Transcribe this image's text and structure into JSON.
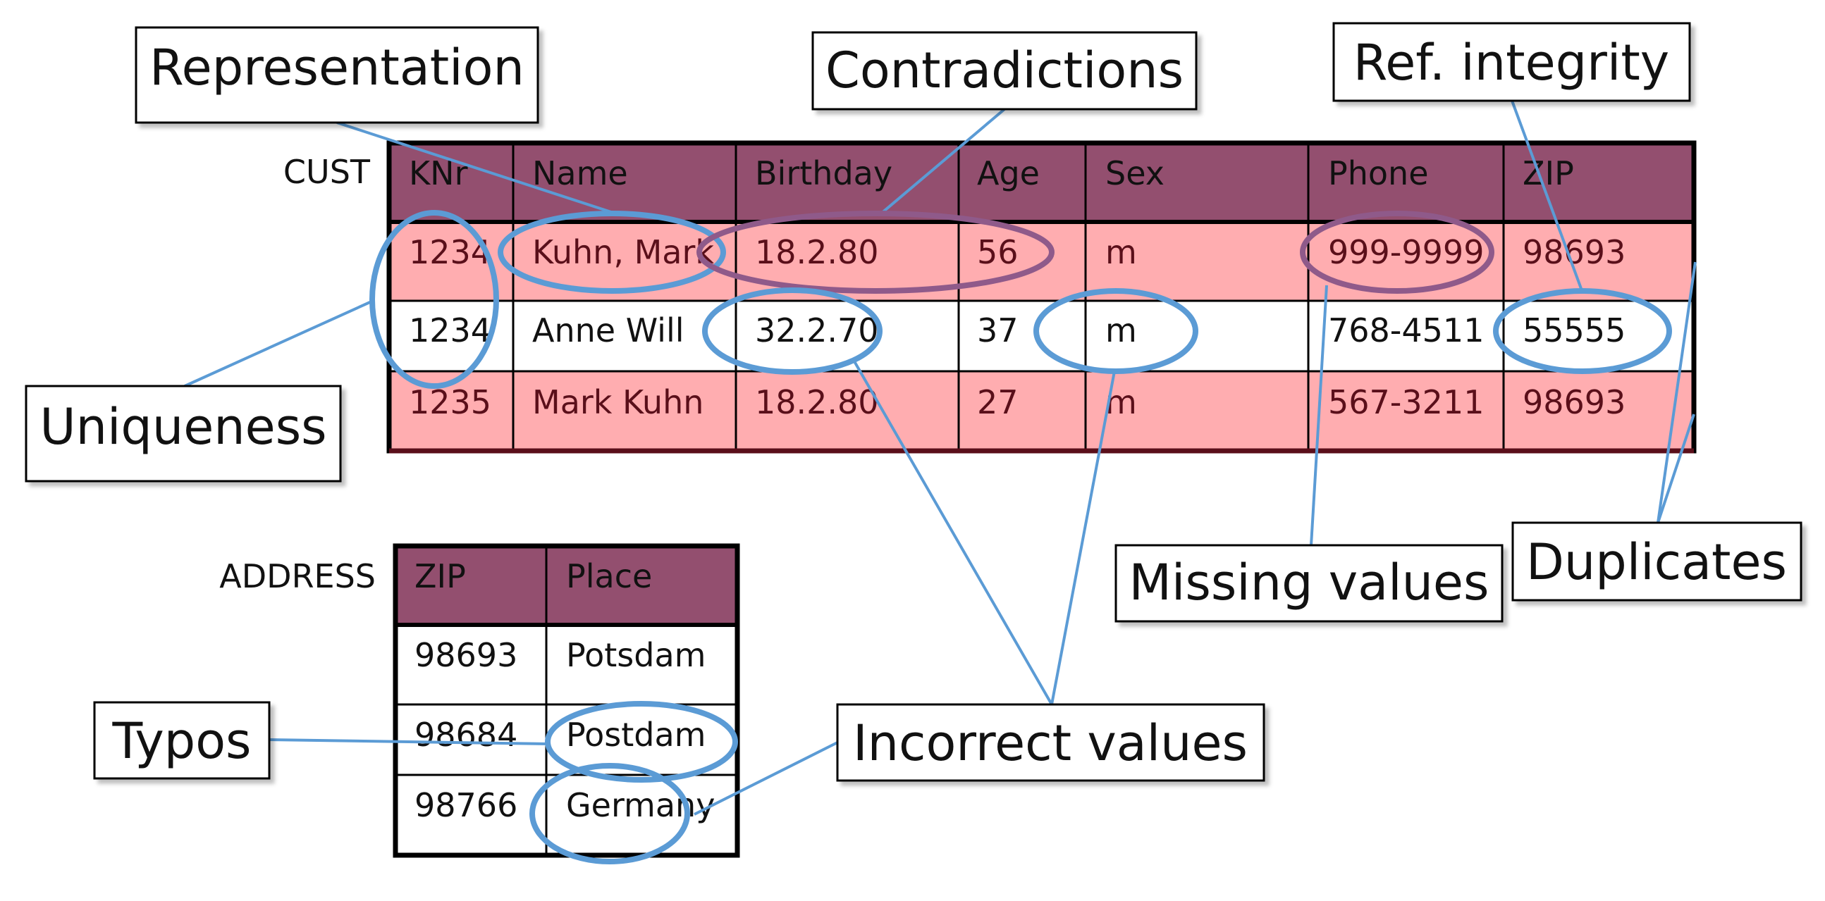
{
  "colors": {
    "header_fill": "#934f6f",
    "duplicate_row_fill": "#ffadb0",
    "plain_row_fill": "#ffffff",
    "callout_line": "#5b9bd5",
    "purple_ellipse": "#8f5a8a",
    "table_border": "#000000",
    "duplicate_border": "#5a0f1a"
  },
  "cust_table": {
    "label": "CUST",
    "columns": [
      "KNr",
      "Name",
      "Birthday",
      "Age",
      "Sex",
      "Phone",
      "ZIP"
    ],
    "rows": [
      {
        "duplicate": true,
        "cells": [
          "1234",
          "Kuhn, Mark",
          "18.2.80",
          "56",
          "m",
          "999-9999",
          "98693"
        ]
      },
      {
        "duplicate": false,
        "cells": [
          "1234",
          "Anne Will",
          "32.2.70",
          "37",
          "m",
          "768-4511",
          "55555"
        ]
      },
      {
        "duplicate": true,
        "cells": [
          "1235",
          "Mark Kuhn",
          "18.2.80",
          "27",
          "m",
          "567-3211",
          "98693"
        ]
      }
    ]
  },
  "address_table": {
    "label": "ADDRESS",
    "columns": [
      "ZIP",
      "Place"
    ],
    "rows": [
      [
        "98693",
        "Potsdam"
      ],
      [
        "98684",
        "Postdam"
      ],
      [
        "98766",
        "Germany"
      ]
    ]
  },
  "callouts": {
    "representation": "Representation",
    "contradictions": "Contradictions",
    "ref_integrity": "Ref. integrity",
    "uniqueness": "Uniqueness",
    "missing_values": "Missing values",
    "duplicates": "Duplicates",
    "typos": "Typos",
    "incorrect_values": "Incorrect values"
  }
}
